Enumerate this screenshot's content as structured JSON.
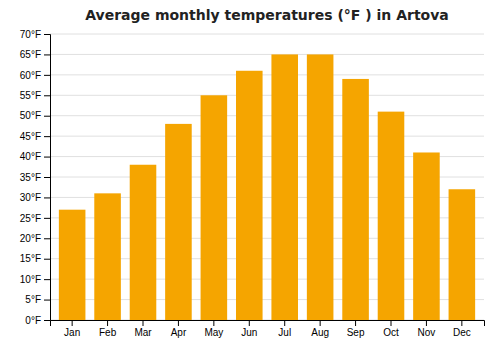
{
  "chart_data": {
    "type": "bar",
    "title": "Average monthly temperatures (°F ) in Artova",
    "categories": [
      "Jan",
      "Feb",
      "Mar",
      "Apr",
      "May",
      "Jun",
      "Jul",
      "Aug",
      "Sep",
      "Oct",
      "Nov",
      "Dec"
    ],
    "values": [
      27,
      31,
      38,
      48,
      55,
      61,
      65,
      65,
      59,
      51,
      41,
      32
    ],
    "color": "#F5A500",
    "ylim": [
      0,
      70
    ],
    "yticks": [
      {
        "value": 0,
        "label": "0°F"
      },
      {
        "value": 5,
        "label": "5°F"
      },
      {
        "value": 10,
        "label": "10°F"
      },
      {
        "value": 15,
        "label": "15°F"
      },
      {
        "value": 20,
        "label": "20°F"
      },
      {
        "value": 25,
        "label": "25°F"
      },
      {
        "value": 30,
        "label": "30°F"
      },
      {
        "value": 35,
        "label": "35°F"
      },
      {
        "value": 40,
        "label": "40°F"
      },
      {
        "value": 45,
        "label": "45°F"
      },
      {
        "value": 50,
        "label": "50°F"
      },
      {
        "value": 55,
        "label": "55°F"
      },
      {
        "value": 60,
        "label": "60°F"
      },
      {
        "value": 65,
        "label": "65°F"
      },
      {
        "value": 70,
        "label": "70°F"
      }
    ],
    "grid": true
  }
}
